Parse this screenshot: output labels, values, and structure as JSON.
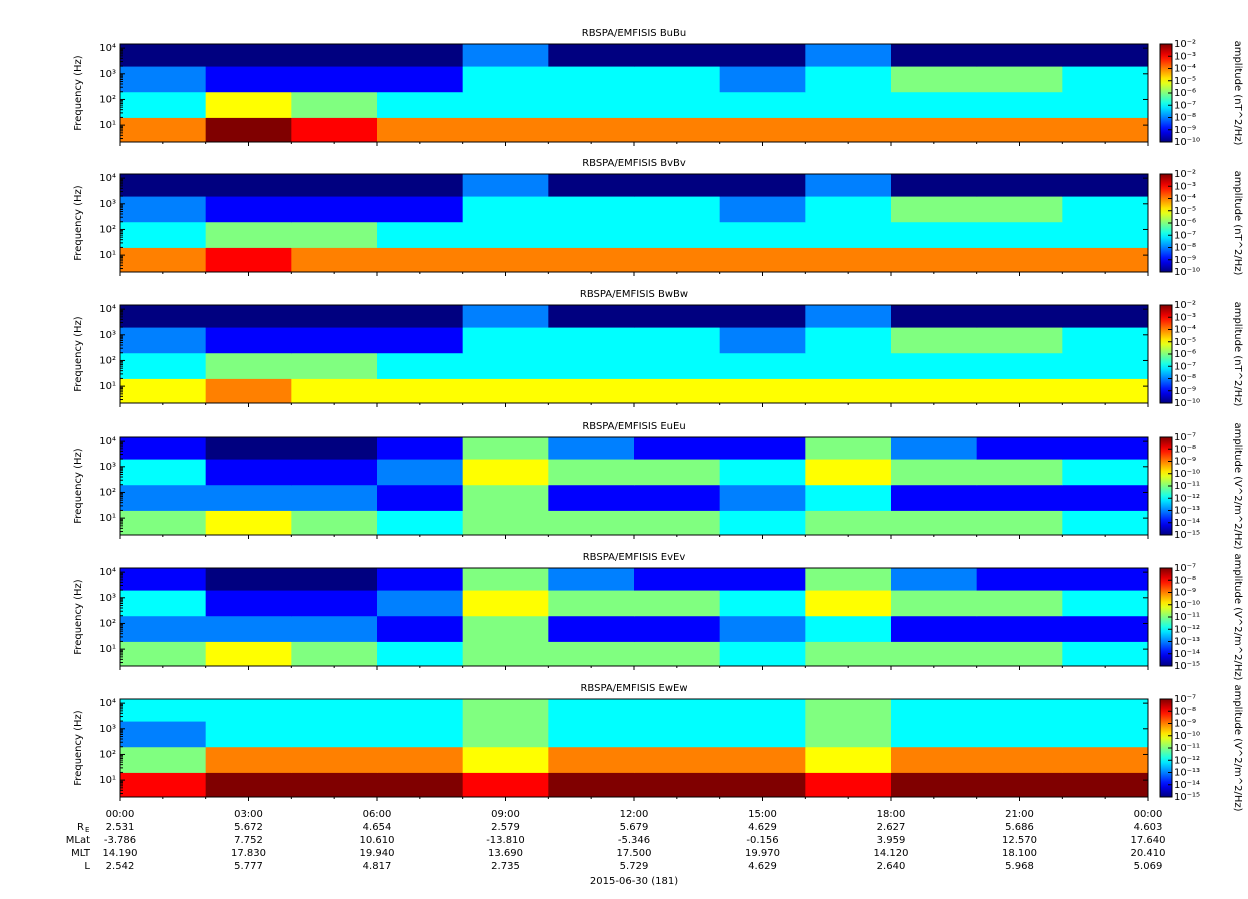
{
  "chart_data": [
    {
      "type": "spectrogram",
      "title": "RBSPA/EMFISIS  BuBu",
      "ylabel": "Frequency (Hz)",
      "ylog": true,
      "ylim": [
        2.2,
        14500
      ],
      "yticks": [
        {
          "value": 10,
          "label": "10¹"
        },
        {
          "value": 100,
          "label": "10²"
        },
        {
          "value": 1000,
          "label": "10³"
        },
        {
          "value": 10000,
          "label": "10⁴"
        }
      ],
      "xlim": [
        0,
        24
      ],
      "xticks": [
        0,
        3,
        6,
        9,
        12,
        15,
        18,
        21,
        24
      ],
      "time_bins": [
        0,
        2,
        4,
        6,
        8,
        10,
        12,
        14,
        16,
        18,
        20,
        22,
        24
      ],
      "freq_bins": [
        2.2,
        20,
        200,
        2000,
        14500
      ],
      "z": [
        [
          0.0001,
          0.01,
          0.001,
          0.0001,
          0.0001,
          0.0001,
          0.0001,
          0.0001,
          0.0001,
          0.0001,
          0.0001,
          0.0001
        ],
        [
          1e-07,
          1e-05,
          1e-06,
          1e-07,
          1e-07,
          1e-07,
          1e-07,
          1e-07,
          1e-07,
          1e-07,
          1e-07,
          1e-07
        ],
        [
          1e-08,
          1e-09,
          1e-09,
          1e-09,
          1e-07,
          1e-07,
          1e-07,
          1e-08,
          1e-07,
          1e-06,
          1e-06,
          1e-07
        ],
        [
          1e-10,
          1e-10,
          1e-10,
          1e-10,
          1e-08,
          1e-10,
          1e-10,
          1e-10,
          1e-08,
          1e-10,
          1e-10,
          1e-10
        ]
      ],
      "zlog": true,
      "colormap": "jet",
      "zlabel": "amplitude (nT^2/Hz)",
      "zlim": [
        1e-10,
        0.01
      ],
      "zticks": [
        {
          "value": 1e-10,
          "label": "10⁻¹⁰"
        },
        {
          "value": 1e-09,
          "label": "10⁻⁹"
        },
        {
          "value": 1e-08,
          "label": "10⁻⁸"
        },
        {
          "value": 1e-07,
          "label": "10⁻⁷"
        },
        {
          "value": 1e-06,
          "label": "10⁻⁶"
        },
        {
          "value": 1e-05,
          "label": "10⁻⁵"
        },
        {
          "value": 0.0001,
          "label": "10⁻⁴"
        },
        {
          "value": 0.001,
          "label": "10⁻³"
        },
        {
          "value": 0.01,
          "label": "10⁻²"
        }
      ]
    },
    {
      "type": "spectrogram",
      "title": "RBSPA/EMFISIS  BvBv",
      "ylabel": "Frequency (Hz)",
      "ylog": true,
      "ylim": [
        2.2,
        14500
      ],
      "yticks": [
        {
          "value": 10,
          "label": "10¹"
        },
        {
          "value": 100,
          "label": "10²"
        },
        {
          "value": 1000,
          "label": "10³"
        },
        {
          "value": 10000,
          "label": "10⁴"
        }
      ],
      "xlim": [
        0,
        24
      ],
      "xticks": [
        0,
        3,
        6,
        9,
        12,
        15,
        18,
        21,
        24
      ],
      "time_bins": [
        0,
        2,
        4,
        6,
        8,
        10,
        12,
        14,
        16,
        18,
        20,
        22,
        24
      ],
      "freq_bins": [
        2.2,
        20,
        200,
        2000,
        14500
      ],
      "z": [
        [
          0.0001,
          0.001,
          0.0001,
          0.0001,
          0.0001,
          0.0001,
          0.0001,
          0.0001,
          0.0001,
          0.0001,
          0.0001,
          0.0001
        ],
        [
          1e-07,
          1e-06,
          1e-06,
          1e-07,
          1e-07,
          1e-07,
          1e-07,
          1e-07,
          1e-07,
          1e-07,
          1e-07,
          1e-07
        ],
        [
          1e-08,
          1e-09,
          1e-09,
          1e-09,
          1e-07,
          1e-07,
          1e-07,
          1e-08,
          1e-07,
          1e-06,
          1e-06,
          1e-07
        ],
        [
          1e-10,
          1e-10,
          1e-10,
          1e-10,
          1e-08,
          1e-10,
          1e-10,
          1e-10,
          1e-08,
          1e-10,
          1e-10,
          1e-10
        ]
      ],
      "zlog": true,
      "colormap": "jet",
      "zlabel": "amplitude (nT^2/Hz)",
      "zlim": [
        1e-10,
        0.01
      ],
      "zticks": [
        {
          "value": 1e-10,
          "label": "10⁻¹⁰"
        },
        {
          "value": 1e-09,
          "label": "10⁻⁹"
        },
        {
          "value": 1e-08,
          "label": "10⁻⁸"
        },
        {
          "value": 1e-07,
          "label": "10⁻⁷"
        },
        {
          "value": 1e-06,
          "label": "10⁻⁶"
        },
        {
          "value": 1e-05,
          "label": "10⁻⁵"
        },
        {
          "value": 0.0001,
          "label": "10⁻⁴"
        },
        {
          "value": 0.001,
          "label": "10⁻³"
        },
        {
          "value": 0.01,
          "label": "10⁻²"
        }
      ]
    },
    {
      "type": "spectrogram",
      "title": "RBSPA/EMFISIS  BwBw",
      "ylabel": "Frequency (Hz)",
      "ylog": true,
      "ylim": [
        2.2,
        14500
      ],
      "yticks": [
        {
          "value": 10,
          "label": "10¹"
        },
        {
          "value": 100,
          "label": "10²"
        },
        {
          "value": 1000,
          "label": "10³"
        },
        {
          "value": 10000,
          "label": "10⁴"
        }
      ],
      "xlim": [
        0,
        24
      ],
      "xticks": [
        0,
        3,
        6,
        9,
        12,
        15,
        18,
        21,
        24
      ],
      "time_bins": [
        0,
        2,
        4,
        6,
        8,
        10,
        12,
        14,
        16,
        18,
        20,
        22,
        24
      ],
      "freq_bins": [
        2.2,
        20,
        200,
        2000,
        14500
      ],
      "z": [
        [
          1e-05,
          0.0001,
          1e-05,
          1e-05,
          1e-05,
          1e-05,
          1e-05,
          1e-05,
          1e-05,
          1e-05,
          1e-05,
          1e-05
        ],
        [
          1e-07,
          1e-06,
          1e-06,
          1e-07,
          1e-07,
          1e-07,
          1e-07,
          1e-07,
          1e-07,
          1e-07,
          1e-07,
          1e-07
        ],
        [
          1e-08,
          1e-09,
          1e-09,
          1e-09,
          1e-07,
          1e-07,
          1e-07,
          1e-08,
          1e-07,
          1e-06,
          1e-06,
          1e-07
        ],
        [
          1e-10,
          1e-10,
          1e-10,
          1e-10,
          1e-08,
          1e-10,
          1e-10,
          1e-10,
          1e-08,
          1e-10,
          1e-10,
          1e-10
        ]
      ],
      "zlog": true,
      "colormap": "jet",
      "zlabel": "amplitude (nT^2/Hz)",
      "zlim": [
        1e-10,
        0.01
      ],
      "zticks": [
        {
          "value": 1e-10,
          "label": "10⁻¹⁰"
        },
        {
          "value": 1e-09,
          "label": "10⁻⁹"
        },
        {
          "value": 1e-08,
          "label": "10⁻⁸"
        },
        {
          "value": 1e-07,
          "label": "10⁻⁷"
        },
        {
          "value": 1e-06,
          "label": "10⁻⁶"
        },
        {
          "value": 1e-05,
          "label": "10⁻⁵"
        },
        {
          "value": 0.0001,
          "label": "10⁻⁴"
        },
        {
          "value": 0.001,
          "label": "10⁻³"
        },
        {
          "value": 0.01,
          "label": "10⁻²"
        }
      ]
    },
    {
      "type": "spectrogram",
      "title": "RBSPA/EMFISIS  EuEu",
      "ylabel": "Frequency (Hz)",
      "ylog": true,
      "ylim": [
        2.2,
        14500
      ],
      "yticks": [
        {
          "value": 10,
          "label": "10¹"
        },
        {
          "value": 100,
          "label": "10²"
        },
        {
          "value": 1000,
          "label": "10³"
        },
        {
          "value": 10000,
          "label": "10⁴"
        }
      ],
      "xlim": [
        0,
        24
      ],
      "xticks": [
        0,
        3,
        6,
        9,
        12,
        15,
        18,
        21,
        24
      ],
      "time_bins": [
        0,
        2,
        4,
        6,
        8,
        10,
        12,
        14,
        16,
        18,
        20,
        22,
        24
      ],
      "freq_bins": [
        2.2,
        20,
        200,
        2000,
        14500
      ],
      "z": [
        [
          1e-11,
          1e-10,
          1e-11,
          1e-12,
          1e-11,
          1e-11,
          1e-11,
          1e-12,
          1e-11,
          1e-11,
          1e-11,
          1e-12
        ],
        [
          1e-13,
          1e-13,
          1e-13,
          1e-14,
          1e-11,
          1e-14,
          1e-14,
          1e-13,
          1e-12,
          1e-14,
          1e-14,
          1e-14
        ],
        [
          1e-12,
          1e-14,
          1e-14,
          1e-13,
          1e-10,
          1e-11,
          1e-11,
          1e-12,
          1e-10,
          1e-11,
          1e-11,
          1e-12
        ],
        [
          1e-14,
          1e-15,
          1e-15,
          1e-14,
          1e-11,
          1e-13,
          1e-14,
          1e-14,
          1e-11,
          1e-13,
          1e-14,
          1e-14
        ]
      ],
      "zlog": true,
      "colormap": "jet",
      "zlabel": "amplitude (V^2/m^2/Hz)",
      "zlim": [
        1e-15,
        1e-07
      ],
      "zticks": [
        {
          "value": 1e-15,
          "label": "10⁻¹⁵"
        },
        {
          "value": 1e-14,
          "label": "10⁻¹⁴"
        },
        {
          "value": 1e-13,
          "label": "10⁻¹³"
        },
        {
          "value": 1e-12,
          "label": "10⁻¹²"
        },
        {
          "value": 1e-11,
          "label": "10⁻¹¹"
        },
        {
          "value": 1e-10,
          "label": "10⁻¹⁰"
        },
        {
          "value": 1e-09,
          "label": "10⁻⁹"
        },
        {
          "value": 1e-08,
          "label": "10⁻⁸"
        },
        {
          "value": 1e-07,
          "label": "10⁻⁷"
        }
      ]
    },
    {
      "type": "spectrogram",
      "title": "RBSPA/EMFISIS  EvEv",
      "ylabel": "Frequency (Hz)",
      "ylog": true,
      "ylim": [
        2.2,
        14500
      ],
      "yticks": [
        {
          "value": 10,
          "label": "10¹"
        },
        {
          "value": 100,
          "label": "10²"
        },
        {
          "value": 1000,
          "label": "10³"
        },
        {
          "value": 10000,
          "label": "10⁴"
        }
      ],
      "xlim": [
        0,
        24
      ],
      "xticks": [
        0,
        3,
        6,
        9,
        12,
        15,
        18,
        21,
        24
      ],
      "time_bins": [
        0,
        2,
        4,
        6,
        8,
        10,
        12,
        14,
        16,
        18,
        20,
        22,
        24
      ],
      "freq_bins": [
        2.2,
        20,
        200,
        2000,
        14500
      ],
      "z": [
        [
          1e-11,
          1e-10,
          1e-11,
          1e-12,
          1e-11,
          1e-11,
          1e-11,
          1e-12,
          1e-11,
          1e-11,
          1e-11,
          1e-12
        ],
        [
          1e-13,
          1e-13,
          1e-13,
          1e-14,
          1e-11,
          1e-14,
          1e-14,
          1e-13,
          1e-12,
          1e-14,
          1e-14,
          1e-14
        ],
        [
          1e-12,
          1e-14,
          1e-14,
          1e-13,
          1e-10,
          1e-11,
          1e-11,
          1e-12,
          1e-10,
          1e-11,
          1e-11,
          1e-12
        ],
        [
          1e-14,
          1e-15,
          1e-15,
          1e-14,
          1e-11,
          1e-13,
          1e-14,
          1e-14,
          1e-11,
          1e-13,
          1e-14,
          1e-14
        ]
      ],
      "zlog": true,
      "colormap": "jet",
      "zlabel": "amplitude (V^2/m^2/Hz)",
      "zlim": [
        1e-15,
        1e-07
      ],
      "zticks": [
        {
          "value": 1e-15,
          "label": "10⁻¹⁵"
        },
        {
          "value": 1e-14,
          "label": "10⁻¹⁴"
        },
        {
          "value": 1e-13,
          "label": "10⁻¹³"
        },
        {
          "value": 1e-12,
          "label": "10⁻¹²"
        },
        {
          "value": 1e-11,
          "label": "10⁻¹¹"
        },
        {
          "value": 1e-10,
          "label": "10⁻¹⁰"
        },
        {
          "value": 1e-09,
          "label": "10⁻⁹"
        },
        {
          "value": 1e-08,
          "label": "10⁻⁸"
        },
        {
          "value": 1e-07,
          "label": "10⁻⁷"
        }
      ]
    },
    {
      "type": "spectrogram",
      "title": "RBSPA/EMFISIS  EwEw",
      "ylabel": "Frequency (Hz)",
      "ylog": true,
      "ylim": [
        2.2,
        14500
      ],
      "yticks": [
        {
          "value": 10,
          "label": "10¹"
        },
        {
          "value": 100,
          "label": "10²"
        },
        {
          "value": 1000,
          "label": "10³"
        },
        {
          "value": 10000,
          "label": "10⁴"
        }
      ],
      "xlim": [
        0,
        24
      ],
      "xticks": [
        {
          "value": 0,
          "label": "00:00"
        },
        {
          "value": 3,
          "label": "03:00"
        },
        {
          "value": 6,
          "label": "06:00"
        },
        {
          "value": 9,
          "label": "09:00"
        },
        {
          "value": 12,
          "label": "12:00"
        },
        {
          "value": 15,
          "label": "15:00"
        },
        {
          "value": 18,
          "label": "18:00"
        },
        {
          "value": 21,
          "label": "21:00"
        },
        {
          "value": 24,
          "label": "00:00"
        }
      ],
      "time_bins": [
        0,
        2,
        4,
        6,
        8,
        10,
        12,
        14,
        16,
        18,
        20,
        22,
        24
      ],
      "freq_bins": [
        2.2,
        20,
        200,
        2000,
        14500
      ],
      "z": [
        [
          1e-08,
          1e-07,
          1e-07,
          1e-07,
          1e-08,
          1e-07,
          1e-07,
          1e-07,
          1e-08,
          1e-07,
          1e-07,
          1e-07
        ],
        [
          1e-11,
          1e-09,
          1e-09,
          1e-09,
          1e-10,
          1e-09,
          1e-09,
          1e-09,
          1e-10,
          1e-09,
          1e-09,
          1e-09
        ],
        [
          1e-13,
          1e-12,
          1e-12,
          1e-12,
          1e-11,
          1e-12,
          1e-12,
          1e-12,
          1e-11,
          1e-12,
          1e-12,
          1e-12
        ],
        [
          1e-12,
          1e-12,
          1e-12,
          1e-12,
          1e-11,
          1e-12,
          1e-12,
          1e-12,
          1e-11,
          1e-12,
          1e-12,
          1e-12
        ]
      ],
      "zlog": true,
      "colormap": "jet",
      "zlabel": "amplitude (V^2/m^2/Hz)",
      "zlim": [
        1e-15,
        1e-07
      ],
      "zticks": [
        {
          "value": 1e-15,
          "label": "10⁻¹⁵"
        },
        {
          "value": 1e-14,
          "label": "10⁻¹⁴"
        },
        {
          "value": 1e-13,
          "label": "10⁻¹³"
        },
        {
          "value": 1e-12,
          "label": "10⁻¹²"
        },
        {
          "value": 1e-11,
          "label": "10⁻¹¹"
        },
        {
          "value": 1e-10,
          "label": "10⁻¹⁰"
        },
        {
          "value": 1e-09,
          "label": "10⁻⁹"
        },
        {
          "value": 1e-08,
          "label": "10⁻⁸"
        },
        {
          "value": 1e-07,
          "label": "10⁻⁷"
        }
      ]
    }
  ],
  "ephemeris": {
    "rows": [
      {
        "label": "R",
        "sub": "E",
        "values": [
          "2.531",
          "5.672",
          "4.654",
          "2.579",
          "5.679",
          "4.629",
          "2.627",
          "5.686",
          "4.603"
        ]
      },
      {
        "label": "MLat",
        "values": [
          "-3.786",
          "7.752",
          "10.610",
          "-13.810",
          "-5.346",
          "-0.156",
          "3.959",
          "12.570",
          "17.640"
        ]
      },
      {
        "label": "MLT",
        "values": [
          "14.190",
          "17.830",
          "19.940",
          "13.690",
          "17.500",
          "19.970",
          "14.120",
          "18.100",
          "20.410"
        ]
      },
      {
        "label": "L",
        "values": [
          "2.542",
          "5.777",
          "4.817",
          "2.735",
          "5.729",
          "4.629",
          "2.640",
          "5.968",
          "5.069"
        ]
      }
    ]
  },
  "date": "2015-06-30 (181)"
}
